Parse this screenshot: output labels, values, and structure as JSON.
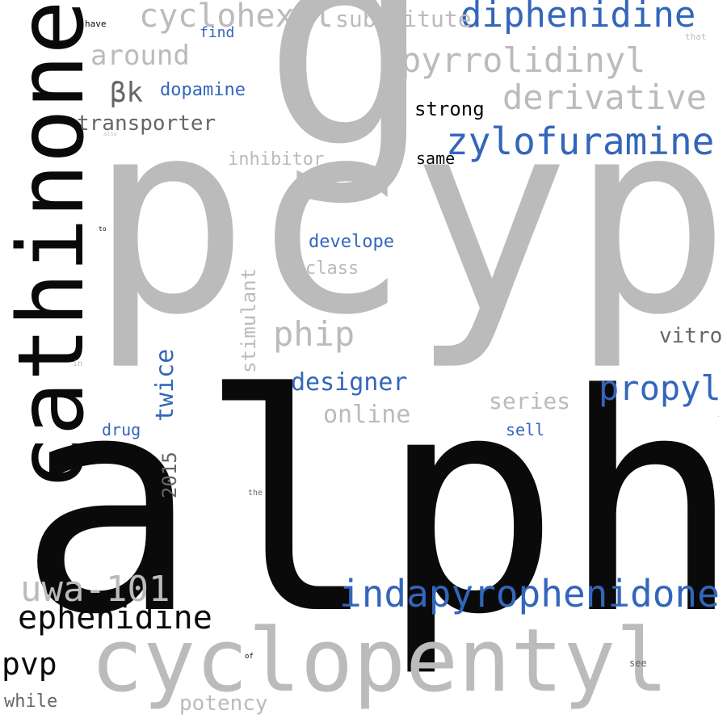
{
  "colors": {
    "background": "#ffffff",
    "gray": "#bbbbbb",
    "blue": "#3366bb",
    "black": "#0a0a0a",
    "dark_gray": "#666666"
  },
  "words": [
    {
      "text": "alpha",
      "color": "black"
    },
    {
      "text": "pcyp",
      "color": "gray"
    },
    {
      "text": "g",
      "color": "gray"
    },
    {
      "text": "cathinone",
      "color": "black"
    },
    {
      "text": "cyclopentyl",
      "color": "gray"
    },
    {
      "text": "indapyrophenidone",
      "color": "blue"
    },
    {
      "text": "zylofuramine",
      "color": "blue"
    },
    {
      "text": "diphenidine",
      "color": "blue"
    },
    {
      "text": "pyrrolidinyl",
      "color": "gray"
    },
    {
      "text": "derivative",
      "color": "gray"
    },
    {
      "text": "cyclohexyl",
      "color": "gray"
    },
    {
      "text": "ephenidine",
      "color": "black"
    },
    {
      "text": "uwa-101",
      "color": "gray"
    },
    {
      "text": "propyl",
      "color": "blue"
    },
    {
      "text": "phip",
      "color": "gray"
    },
    {
      "text": "pvp",
      "color": "black"
    },
    {
      "text": "around",
      "color": "gray"
    },
    {
      "text": "substitute",
      "color": "gray"
    },
    {
      "text": "βk",
      "color": "dark_gray"
    },
    {
      "text": "transporter",
      "color": "dark_gray"
    },
    {
      "text": "designer",
      "color": "blue"
    },
    {
      "text": "online",
      "color": "gray"
    },
    {
      "text": "twice",
      "color": "blue"
    },
    {
      "text": "stimulant",
      "color": "gray"
    },
    {
      "text": "series",
      "color": "gray"
    },
    {
      "text": "vitro",
      "color": "dark_gray"
    },
    {
      "text": "potency",
      "color": "gray"
    },
    {
      "text": "strong",
      "color": "black"
    },
    {
      "text": "dopamine",
      "color": "blue"
    },
    {
      "text": "develope",
      "color": "blue"
    },
    {
      "text": "2015",
      "color": "dark_gray"
    },
    {
      "text": "inhibitor",
      "color": "gray"
    },
    {
      "text": "class",
      "color": "gray"
    },
    {
      "text": "while",
      "color": "dark_gray"
    },
    {
      "text": "same",
      "color": "black"
    },
    {
      "text": "drug",
      "color": "blue"
    },
    {
      "text": "sell",
      "color": "blue"
    },
    {
      "text": "find",
      "color": "blue"
    },
    {
      "text": "have",
      "color": "black"
    },
    {
      "text": "that",
      "color": "gray"
    },
    {
      "text": "see",
      "color": "dark_gray"
    },
    {
      "text": "the",
      "color": "dark_gray"
    },
    {
      "text": "of",
      "color": "black"
    },
    {
      "text": "in",
      "color": "gray"
    },
    {
      "text": "to",
      "color": "black"
    },
    {
      "text": "also",
      "color": "gray"
    },
    {
      "text": ".",
      "color": "gray"
    }
  ]
}
